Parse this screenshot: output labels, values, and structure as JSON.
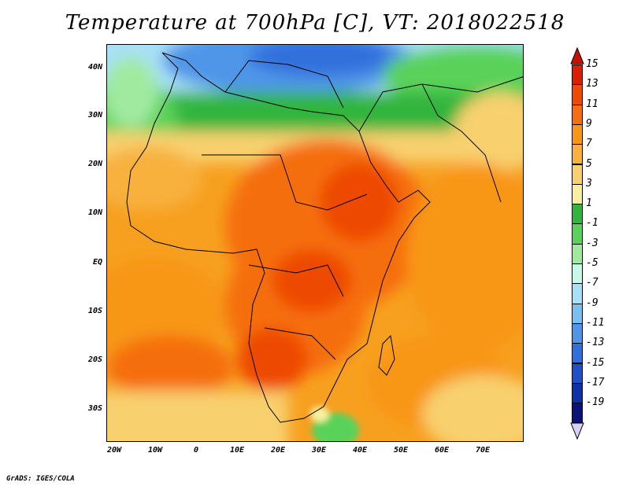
{
  "title": "Temperature at 700hPa [C], VT: 2018022518",
  "credit": "GrADS: IGES/COLA",
  "map": {
    "lat_labels": [
      "40N",
      "30N",
      "20N",
      "10N",
      "EQ",
      "10S",
      "20S",
      "30S"
    ],
    "lon_labels": [
      "20W",
      "10W",
      "0",
      "10E",
      "20E",
      "30E",
      "40E",
      "50E",
      "60E",
      "70E"
    ]
  },
  "colorbar": {
    "labels": [
      "15",
      "13",
      "11",
      "9",
      "7",
      "5",
      "3",
      "1",
      "-1",
      "-3",
      "-5",
      "-7",
      "-9",
      "-11",
      "-13",
      "-15",
      "-17",
      "-19"
    ],
    "colors": [
      "#d92000",
      "#ee4a04",
      "#f56e0f",
      "#f89618",
      "#f8b13c",
      "#f8d06e",
      "#f8f0a0",
      "#32b53c",
      "#5ad25a",
      "#a0eaa0",
      "#c8f8e8",
      "#a8e0f8",
      "#78c0f0",
      "#5096e8",
      "#3070dc",
      "#2050c8",
      "#1030a8",
      "#0a1478"
    ],
    "top_arrow_color": "#c81000",
    "bottom_arrow_color": "#d8d0f8"
  }
}
